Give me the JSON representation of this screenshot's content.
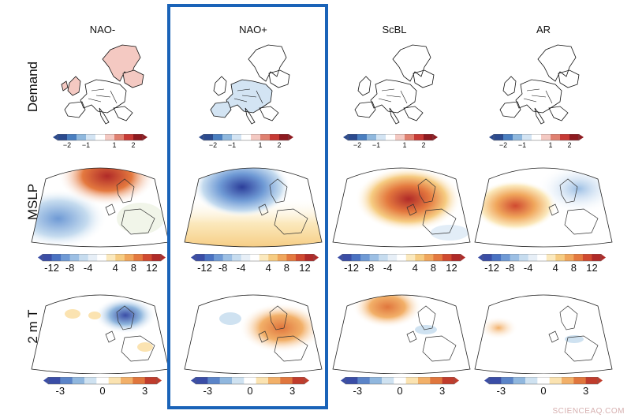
{
  "columns": [
    "NAO-",
    "NAO+",
    "ScBL",
    "AR"
  ],
  "rows": [
    "Demand",
    "MSLP",
    "2 m T"
  ],
  "highlighted_column": "NAO+",
  "colorbars": {
    "demand": {
      "ticks": [
        "−2",
        "−1",
        "1",
        "2"
      ],
      "colors": [
        "#2b4a8e",
        "#4a7fc0",
        "#8fb8de",
        "#d3e4f3",
        "#ffffff",
        "#f4c9c2",
        "#e08070",
        "#c73a35",
        "#8e1a20"
      ]
    },
    "mslp": {
      "ticks": [
        "-12",
        "-8",
        "-4",
        "4",
        "8",
        "12"
      ],
      "colors": [
        "#3a4da6",
        "#4a72c2",
        "#6f9ad5",
        "#9cbfe4",
        "#c6dcef",
        "#e7eff7",
        "#ffffff",
        "#fbe9bd",
        "#f6cc82",
        "#f0a65c",
        "#e4793f",
        "#d04a30",
        "#b02a28"
      ]
    },
    "t2m": {
      "ticks": [
        "-3",
        "0",
        "3"
      ],
      "colors": [
        "#3a4da6",
        "#5b84c8",
        "#90b7de",
        "#cfe2f1",
        "#ffffff",
        "#fbe3b1",
        "#f2b069",
        "#e0763d",
        "#c03c2c"
      ]
    }
  },
  "watermark": "SCIENCEAQ.COM"
}
